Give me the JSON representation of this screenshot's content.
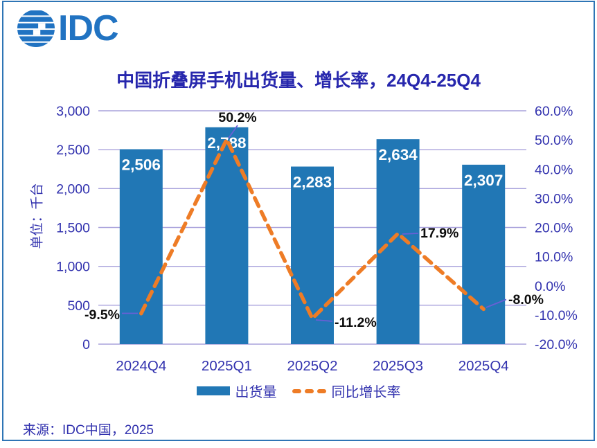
{
  "logo": {
    "text": "IDC",
    "icon": "globe-icon"
  },
  "source": "来源：IDC中国，2025",
  "colors": {
    "bar": "#2177B5",
    "line": "#EE7C26",
    "text_navy": "#3131AE",
    "title_navy": "#2727AD",
    "gridline": "#A9A2DC",
    "callout_text": "#0D0D0D",
    "callout_leader": "#6A5FD6",
    "bar_label": "#FFFFFF",
    "logo_blue": "#2173C2",
    "frame_border": "#2E75B5"
  },
  "chart_data": {
    "type": "combo",
    "title": "中国折叠屏手机出货量、增长率，24Q4-25Q4",
    "categories": [
      "2024Q4",
      "2025Q1",
      "2025Q2",
      "2025Q3",
      "2025Q4"
    ],
    "series": [
      {
        "name": "出货量",
        "type": "bar",
        "axis": "left",
        "values": [
          2506,
          2788,
          2283,
          2634,
          2307
        ],
        "labels": [
          "2,506",
          "2,788",
          "2,283",
          "2,634",
          "2,307"
        ],
        "color": "#2177B5"
      },
      {
        "name": "同比增长率",
        "type": "line",
        "axis": "right",
        "dashed": true,
        "values": [
          -9.5,
          50.2,
          -11.2,
          17.9,
          -8.0
        ],
        "labels": [
          "-9.5%",
          "50.2%",
          "-11.2%",
          "17.9%",
          "-8.0%"
        ],
        "color": "#EE7C26"
      }
    ],
    "ylabel_left": "单位：千台",
    "left_axis": {
      "min": 0,
      "max": 3000,
      "ticks": [
        "0",
        "500",
        "1,000",
        "1,500",
        "2,000",
        "2,500",
        "3,000"
      ]
    },
    "right_axis": {
      "min": -20,
      "max": 60,
      "ticks": [
        "-20.0%",
        "-10.0%",
        "0.0%",
        "10.0%",
        "20.0%",
        "30.0%",
        "40.0%",
        "50.0%",
        "60.0%"
      ]
    },
    "grid": true,
    "legend_position": "bottom"
  },
  "legend": {
    "items": [
      {
        "label": "出货量",
        "swatch": "bar"
      },
      {
        "label": "同比增长率",
        "swatch": "dashed-line"
      }
    ]
  }
}
